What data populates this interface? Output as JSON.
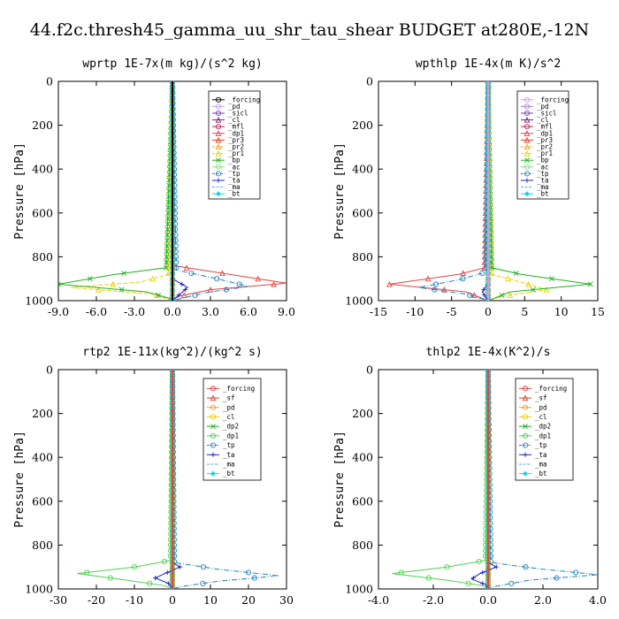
{
  "title": "44.f2c.thresh45_gamma_uu_shr_tau_shear  BUDGET at280E,-12N",
  "chart_data": [
    {
      "type": "line",
      "title": "wprtp  1E-7x(m kg)/(s^2 kg)",
      "ylabel": "Pressure [hPa]",
      "xlim": [
        -9,
        9
      ],
      "ylim": [
        0,
        1000
      ],
      "xticks": [
        "-9.0",
        "-6.0",
        "-3.0",
        "0.0",
        "3.0",
        "6.0",
        "9.0"
      ],
      "yticks": [
        "0",
        "200",
        "400",
        "600",
        "800",
        "1000"
      ],
      "legend_position": "top-right",
      "series": [
        {
          "name": "_forcing",
          "color": "#000000",
          "marker": "circle",
          "p": [
            0,
            900,
            1000
          ],
          "x": [
            0,
            0,
            0
          ]
        },
        {
          "name": "_pd",
          "color": "#c8a0e0",
          "marker": "circle",
          "p": [
            0,
            900,
            1000
          ],
          "x": [
            0,
            0,
            0
          ]
        },
        {
          "name": "_sicl",
          "color": "#7b3fb0",
          "marker": "circle",
          "p": [
            0,
            900,
            1000
          ],
          "x": [
            0,
            0,
            0
          ]
        },
        {
          "name": "_cl",
          "color": "#7a2070",
          "marker": "triangle",
          "p": [
            0,
            900,
            1000
          ],
          "x": [
            0,
            0,
            0
          ]
        },
        {
          "name": "_mfl",
          "color": "#b8285a",
          "marker": "circle",
          "p": [
            0,
            900,
            1000
          ],
          "x": [
            0,
            0,
            0
          ]
        },
        {
          "name": "_dp1",
          "color": "#e34444",
          "marker": "triangle",
          "p": [
            0,
            840,
            880,
            920,
            950,
            980,
            1000
          ],
          "x": [
            0,
            0,
            4.5,
            9.0,
            3.0,
            0.5,
            0
          ]
        },
        {
          "name": "_pr3",
          "color": "#e83a20",
          "marker": "triangle",
          "p": [
            0,
            900,
            1000
          ],
          "x": [
            0,
            0,
            0
          ]
        },
        {
          "name": "_pr2",
          "color": "#f0a020",
          "marker": "triangle",
          "p": [
            0,
            900,
            1000
          ],
          "x": [
            0,
            0,
            0
          ]
        },
        {
          "name": "_pr1",
          "color": "#e8d000",
          "marker": "triangle",
          "p": [
            0,
            880,
            915,
            940,
            970,
            1000
          ],
          "x": [
            0,
            -0.3,
            -2.5,
            -8.0,
            -1.5,
            0
          ]
        },
        {
          "name": "_bp",
          "color": "#20b020",
          "marker": "cross",
          "p": [
            0,
            850,
            880,
            925,
            960,
            990,
            1000
          ],
          "x": [
            0,
            -0.5,
            -4.5,
            -9.0,
            -2.0,
            -0.2,
            0
          ]
        },
        {
          "name": "_ac",
          "color": "#80e080",
          "marker": "circle",
          "p": [
            0,
            900,
            1000
          ],
          "x": [
            0,
            0,
            0
          ]
        },
        {
          "name": "_tp",
          "color": "#2080c0",
          "marker": "circle",
          "p": [
            0,
            860,
            900,
            935,
            965,
            1000
          ],
          "x": [
            0,
            0.3,
            3.5,
            6.0,
            2.5,
            0
          ]
        },
        {
          "name": "_ta",
          "color": "#2020c0",
          "marker": "plus",
          "p": [
            0,
            900,
            940,
            980,
            1000
          ],
          "x": [
            0,
            0,
            1.2,
            0.4,
            0
          ]
        },
        {
          "name": "_ma",
          "color": "#50a8e0",
          "marker": "none",
          "p": [
            0,
            900,
            1000
          ],
          "x": [
            0,
            0,
            0
          ]
        },
        {
          "name": "_bt",
          "color": "#20d0e0",
          "marker": "diamond",
          "p": [
            0,
            900,
            1000
          ],
          "x": [
            0,
            0,
            0
          ]
        }
      ]
    },
    {
      "type": "line",
      "title": "wpthlp  1E-4x(m K)/s^2",
      "ylabel": "Pressure [hPa]",
      "xlim": [
        -15,
        15
      ],
      "ylim": [
        0,
        1000
      ],
      "xticks": [
        "-15",
        "-10",
        "-5",
        "0",
        "5",
        "10",
        "15"
      ],
      "yticks": [
        "0",
        "200",
        "400",
        "600",
        "800",
        "1000"
      ],
      "legend_position": "top-right",
      "series": [
        {
          "name": "_forcing",
          "color": "#c8a0e0",
          "marker": "circle",
          "p": [
            0,
            900,
            1000
          ],
          "x": [
            0,
            0,
            0
          ]
        },
        {
          "name": "_pd",
          "color": "#b080d0",
          "marker": "circle",
          "p": [
            0,
            900,
            1000
          ],
          "x": [
            0,
            0,
            0
          ]
        },
        {
          "name": "_sicl",
          "color": "#7b3fb0",
          "marker": "circle",
          "p": [
            0,
            900,
            1000
          ],
          "x": [
            0,
            0,
            0
          ]
        },
        {
          "name": "_cl",
          "color": "#7a2070",
          "marker": "triangle",
          "p": [
            0,
            900,
            1000
          ],
          "x": [
            0,
            0,
            0
          ]
        },
        {
          "name": "_mfl",
          "color": "#b8285a",
          "marker": "circle",
          "p": [
            0,
            900,
            1000
          ],
          "x": [
            0,
            0,
            0
          ]
        },
        {
          "name": "_dp1",
          "color": "#e34444",
          "marker": "triangle",
          "p": [
            0,
            850,
            880,
            925,
            960,
            1000
          ],
          "x": [
            0,
            -0.5,
            -4.0,
            -13.5,
            -3.0,
            0
          ]
        },
        {
          "name": "_pr3",
          "color": "#e83a20",
          "marker": "triangle",
          "p": [
            0,
            900,
            1000
          ],
          "x": [
            0,
            0,
            0
          ]
        },
        {
          "name": "_pr2",
          "color": "#f0a020",
          "marker": "triangle",
          "p": [
            0,
            900,
            1000
          ],
          "x": [
            0,
            0,
            0
          ]
        },
        {
          "name": "_pr1",
          "color": "#e8d000",
          "marker": "triangle",
          "p": [
            0,
            880,
            920,
            950,
            980,
            1000
          ],
          "x": [
            0,
            0.5,
            5.0,
            8.0,
            2.0,
            0
          ]
        },
        {
          "name": "_bp",
          "color": "#20b020",
          "marker": "cross",
          "p": [
            0,
            850,
            880,
            925,
            960,
            1000
          ],
          "x": [
            0,
            0.5,
            4.5,
            14.0,
            3.0,
            0
          ]
        },
        {
          "name": "_ac",
          "color": "#80e080",
          "marker": "circle",
          "p": [
            0,
            900,
            1000
          ],
          "x": [
            0,
            0,
            0
          ]
        },
        {
          "name": "_tp",
          "color": "#2080c0",
          "marker": "circle",
          "p": [
            0,
            870,
            905,
            940,
            970,
            1000
          ],
          "x": [
            0,
            -0.3,
            -4.0,
            -9.5,
            -3.0,
            0
          ]
        },
        {
          "name": "_ta",
          "color": "#2020c0",
          "marker": "plus",
          "p": [
            0,
            920,
            960,
            985,
            1000
          ],
          "x": [
            0,
            0,
            -0.8,
            -0.3,
            0
          ]
        },
        {
          "name": "_ma",
          "color": "#50a8e0",
          "marker": "none",
          "p": [
            0,
            900,
            1000
          ],
          "x": [
            0,
            0,
            0
          ]
        },
        {
          "name": "_bt",
          "color": "#20d0e0",
          "marker": "diamond",
          "p": [
            0,
            900,
            1000
          ],
          "x": [
            0,
            0,
            0
          ]
        }
      ]
    },
    {
      "type": "line",
      "title": "rtp2  1E-11x(kg^2)/(kg^2 s)",
      "ylabel": "Pressure [hPa]",
      "xlim": [
        -30,
        30
      ],
      "ylim": [
        0,
        1000
      ],
      "xticks": [
        "-30",
        "-20",
        "-10",
        "0",
        "10",
        "20",
        "30"
      ],
      "yticks": [
        "0",
        "200",
        "400",
        "600",
        "800",
        "1000"
      ],
      "legend_position": "top-right",
      "series": [
        {
          "name": "_forcing",
          "color": "#e34444",
          "marker": "circle",
          "p": [
            0,
            900,
            1000
          ],
          "x": [
            0,
            0,
            0
          ]
        },
        {
          "name": "_sf",
          "color": "#e83a20",
          "marker": "triangle",
          "p": [
            0,
            900,
            1000
          ],
          "x": [
            0,
            0,
            0
          ]
        },
        {
          "name": "_pd",
          "color": "#f0a020",
          "marker": "circle",
          "p": [
            0,
            900,
            1000
          ],
          "x": [
            0,
            0,
            0
          ]
        },
        {
          "name": "_cl",
          "color": "#e8d000",
          "marker": "circle",
          "p": [
            0,
            900,
            1000
          ],
          "x": [
            0,
            0,
            0
          ]
        },
        {
          "name": "_dp2",
          "color": "#20b020",
          "marker": "cross",
          "p": [
            0,
            900,
            1000
          ],
          "x": [
            0,
            0,
            0
          ]
        },
        {
          "name": "_dp1",
          "color": "#50d050",
          "marker": "circle",
          "p": [
            0,
            870,
            900,
            930,
            960,
            985,
            1000
          ],
          "x": [
            0,
            -0.5,
            -10.0,
            -25.0,
            -12.0,
            -2.0,
            0
          ]
        },
        {
          "name": "_tp",
          "color": "#2080c0",
          "marker": "circle",
          "p": [
            0,
            880,
            910,
            940,
            965,
            990,
            1000
          ],
          "x": [
            0,
            0.5,
            12.0,
            28.0,
            12.0,
            2.0,
            0
          ]
        },
        {
          "name": "_ta",
          "color": "#2020c0",
          "marker": "plus",
          "p": [
            0,
            880,
            900,
            930,
            950,
            975,
            1000
          ],
          "x": [
            0,
            0,
            2.0,
            -2.0,
            -4.5,
            -1.0,
            0
          ]
        },
        {
          "name": "_ma",
          "color": "#50a8e0",
          "marker": "none",
          "p": [
            0,
            900,
            1000
          ],
          "x": [
            0,
            0,
            0
          ]
        },
        {
          "name": "_bt",
          "color": "#20d0e0",
          "marker": "diamond",
          "p": [
            0,
            900,
            1000
          ],
          "x": [
            0,
            0,
            0
          ]
        }
      ]
    },
    {
      "type": "line",
      "title": "thlp2  1E-4x(K^2)/s",
      "ylabel": "Pressure [hPa]",
      "xlim": [
        -4,
        4
      ],
      "ylim": [
        0,
        1000
      ],
      "xticks": [
        "-4.0",
        "-2.0",
        "0.0",
        "2.0",
        "4.0"
      ],
      "yticks": [
        "0",
        "200",
        "400",
        "600",
        "800",
        "1000"
      ],
      "legend_position": "top-right",
      "series": [
        {
          "name": "_forcing",
          "color": "#e34444",
          "marker": "circle",
          "p": [
            0,
            900,
            1000
          ],
          "x": [
            0,
            0,
            0
          ]
        },
        {
          "name": "_sf",
          "color": "#e83a20",
          "marker": "triangle",
          "p": [
            0,
            900,
            1000
          ],
          "x": [
            0,
            0,
            0
          ]
        },
        {
          "name": "_pd",
          "color": "#f0a020",
          "marker": "circle",
          "p": [
            0,
            900,
            1000
          ],
          "x": [
            0,
            0,
            0
          ]
        },
        {
          "name": "_cl",
          "color": "#e8d000",
          "marker": "circle",
          "p": [
            0,
            900,
            1000
          ],
          "x": [
            0,
            0,
            0
          ]
        },
        {
          "name": "_dp2",
          "color": "#20b020",
          "marker": "cross",
          "p": [
            0,
            900,
            1000
          ],
          "x": [
            0,
            0,
            0
          ]
        },
        {
          "name": "_dp1",
          "color": "#50d050",
          "marker": "circle",
          "p": [
            0,
            870,
            900,
            930,
            960,
            985,
            1000
          ],
          "x": [
            0,
            -0.1,
            -1.5,
            -3.5,
            -1.5,
            -0.2,
            0
          ]
        },
        {
          "name": "_tp",
          "color": "#2080c0",
          "marker": "circle",
          "p": [
            0,
            880,
            910,
            935,
            960,
            990,
            1000
          ],
          "x": [
            0,
            0.1,
            2.0,
            4.0,
            1.5,
            0.2,
            0
          ]
        },
        {
          "name": "_ta",
          "color": "#2020c0",
          "marker": "plus",
          "p": [
            0,
            880,
            900,
            930,
            955,
            980,
            1000
          ],
          "x": [
            0,
            0,
            0.3,
            -0.3,
            -0.6,
            -0.1,
            0
          ]
        },
        {
          "name": "_ma",
          "color": "#50a8e0",
          "marker": "none",
          "p": [
            0,
            900,
            1000
          ],
          "x": [
            0,
            0,
            0
          ]
        },
        {
          "name": "_bt",
          "color": "#20d0e0",
          "marker": "diamond",
          "p": [
            0,
            900,
            1000
          ],
          "x": [
            0,
            0,
            0
          ]
        }
      ]
    }
  ]
}
